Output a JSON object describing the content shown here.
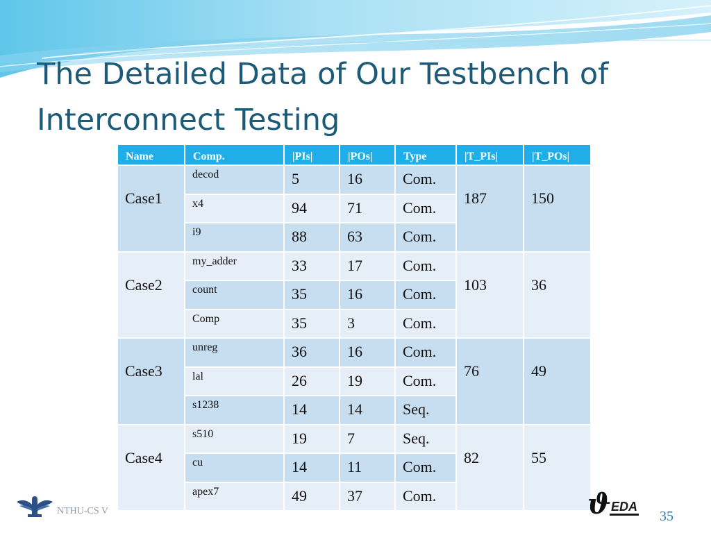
{
  "slide": {
    "title_lines": [
      "The Detailed Data of Our Testbench of",
      "Interconnect Testing"
    ],
    "page_number": "35",
    "footer_text": "NTHU-CS V",
    "eda_logo_text": "EDA",
    "colors": {
      "title": "#1d5a78",
      "header": "#1faee8",
      "row_dark": "#c7ddf0",
      "row_light": "#e6eef8",
      "accent": "#2a7db5"
    }
  },
  "table": {
    "headers": [
      "Name",
      "Comp.",
      "|PIs|",
      "|POs|",
      "Type",
      "|T_PIs|",
      "|T_POs|"
    ],
    "groups": [
      {
        "name": "Case1",
        "t_pis": "187",
        "t_pos": "150",
        "rows": [
          {
            "comp": "decod",
            "pis": "5",
            "pos": "16",
            "type": "Com."
          },
          {
            "comp": "x4",
            "pis": "94",
            "pos": "71",
            "type": "Com."
          },
          {
            "comp": "i9",
            "pis": "88",
            "pos": "63",
            "type": "Com."
          }
        ]
      },
      {
        "name": "Case2",
        "t_pis": "103",
        "t_pos": "36",
        "rows": [
          {
            "comp": "my_adder",
            "pis": "33",
            "pos": "17",
            "type": "Com."
          },
          {
            "comp": "count",
            "pis": "35",
            "pos": "16",
            "type": "Com."
          },
          {
            "comp": "Comp",
            "pis": "35",
            "pos": "3",
            "type": "Com."
          }
        ]
      },
      {
        "name": "Case3",
        "t_pis": "76",
        "t_pos": "49",
        "rows": [
          {
            "comp": "unreg",
            "pis": "36",
            "pos": "16",
            "type": "Com."
          },
          {
            "comp": "lal",
            "pis": "26",
            "pos": "19",
            "type": "Com."
          },
          {
            "comp": "s1238",
            "pis": "14",
            "pos": "14",
            "type": "Seq."
          }
        ]
      },
      {
        "name": "Case4",
        "t_pis": "82",
        "t_pos": "55",
        "rows": [
          {
            "comp": "s510",
            "pis": "19",
            "pos": "7",
            "type": "Seq."
          },
          {
            "comp": "cu",
            "pis": "14",
            "pos": "11",
            "type": "Com."
          },
          {
            "comp": "apex7",
            "pis": "49",
            "pos": "37",
            "type": "Com."
          }
        ]
      }
    ]
  }
}
